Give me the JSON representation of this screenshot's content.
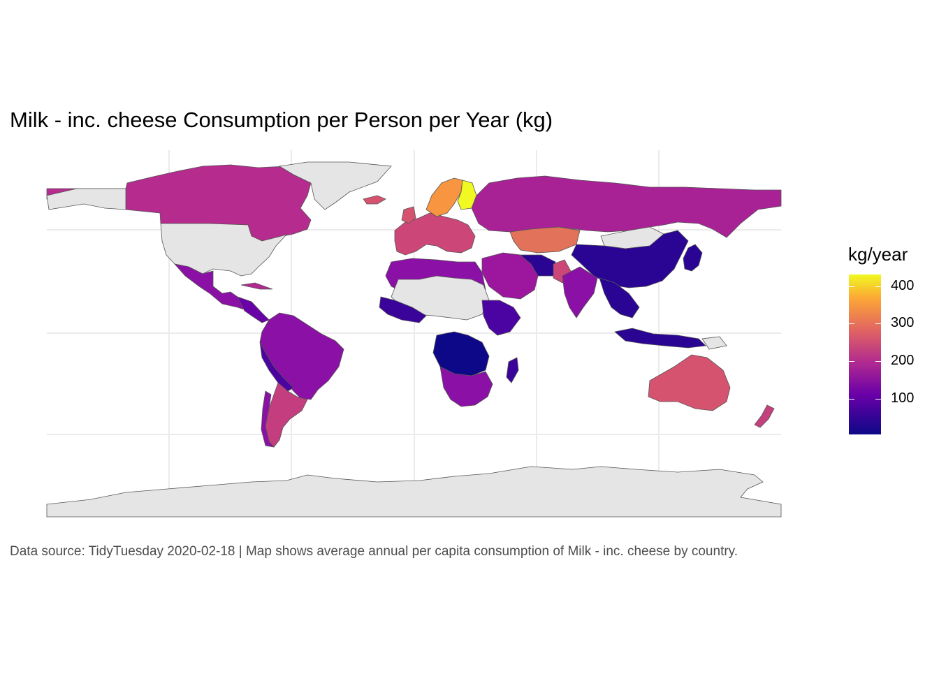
{
  "title": "Milk - inc. cheese Consumption per Person per Year (kg)",
  "caption": "Data source: TidyTuesday 2020-02-18 | Map shows average annual per capita consumption of Milk - inc. cheese by country.",
  "legend": {
    "title": "kg/year",
    "ticks": [
      {
        "label": "400",
        "value": 400
      },
      {
        "label": "300",
        "value": 300
      },
      {
        "label": "200",
        "value": 200
      },
      {
        "label": "100",
        "value": 100
      }
    ],
    "range": [
      5,
      431
    ],
    "palette": [
      "#0d0887",
      "#6a00a8",
      "#b12a90",
      "#e16462",
      "#fca636",
      "#f0f921"
    ]
  },
  "colors": {
    "no_data": "#e5e5e5",
    "border": "#555555",
    "grid": "#ebebeb"
  },
  "regions": [
    {
      "name": "Canada",
      "color": "#b52b8e"
    },
    {
      "name": "USA",
      "color": "#e5e5e5"
    },
    {
      "name": "Greenland",
      "color": "#e5e5e5"
    },
    {
      "name": "Mexico",
      "color": "#8b10a5"
    },
    {
      "name": "South America",
      "color": "#8b10a5"
    },
    {
      "name": "Argentina",
      "color": "#c43e7f"
    },
    {
      "name": "Europe",
      "color": "#cc4778"
    },
    {
      "name": "Scandinavia",
      "color": "#f89540"
    },
    {
      "name": "Finland",
      "color": "#f0f921"
    },
    {
      "name": "Russia",
      "color": "#a82296"
    },
    {
      "name": "Kazakhstan",
      "color": "#e2725a"
    },
    {
      "name": "China",
      "color": "#2a0593"
    },
    {
      "name": "India",
      "color": "#8b10a5"
    },
    {
      "name": "Middle East",
      "color": "#9c179e"
    },
    {
      "name": "Africa",
      "color": "#3a049a"
    },
    {
      "name": "Southeast Asia",
      "color": "#2a0593"
    },
    {
      "name": "Japan",
      "color": "#2a0593"
    },
    {
      "name": "Australia",
      "color": "#d5536f"
    },
    {
      "name": "New Zealand",
      "color": "#c5407e"
    },
    {
      "name": "Antarctica",
      "color": "#e5e5e5"
    }
  ]
}
